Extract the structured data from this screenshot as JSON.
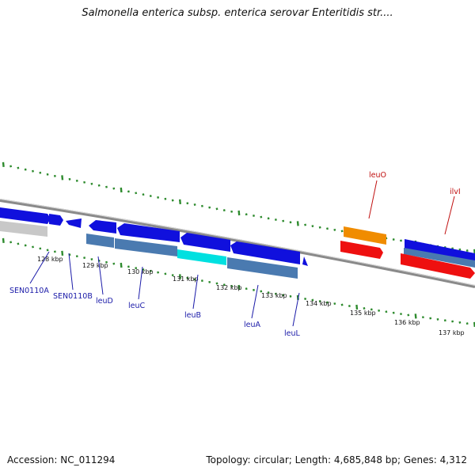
{
  "title": "Salmonella enterica subsp. enterica serovar Enteritidis str....",
  "footer": {
    "accession": "Accession: NC_011294",
    "summary": "Topology: circular; Length: 4,685,848 bp; Genes: 4,312"
  },
  "colors": {
    "backbone": "#8a8a8a",
    "tick": "#2e8b2e",
    "gene_label_blue": "#1a1aa8",
    "gene_label_red": "#c01010",
    "cds_blue": "#1010dd",
    "gene_steel": "#4a7ab0",
    "highlight_cyan": "#00e0e0",
    "orange": "#f08c00",
    "red": "#ee1010",
    "grey": "#c8c8c8"
  },
  "kbp_ticks": [
    "128 kbp",
    "129 kbp",
    "130 kbp",
    "131 kbp",
    "132 kbp",
    "133 kbp",
    "134 kbp",
    "135 kbp",
    "136 kbp",
    "137 kbp"
  ],
  "gene_labels": [
    {
      "name": "SEN0110A",
      "color": "blue"
    },
    {
      "name": "SEN0110B",
      "color": "blue"
    },
    {
      "name": "leuD",
      "color": "blue"
    },
    {
      "name": "leuC",
      "color": "blue"
    },
    {
      "name": "leuB",
      "color": "blue"
    },
    {
      "name": "leuA",
      "color": "blue"
    },
    {
      "name": "leuL",
      "color": "blue"
    },
    {
      "name": "leuO",
      "color": "red"
    },
    {
      "name": "ilvI",
      "color": "red"
    }
  ]
}
